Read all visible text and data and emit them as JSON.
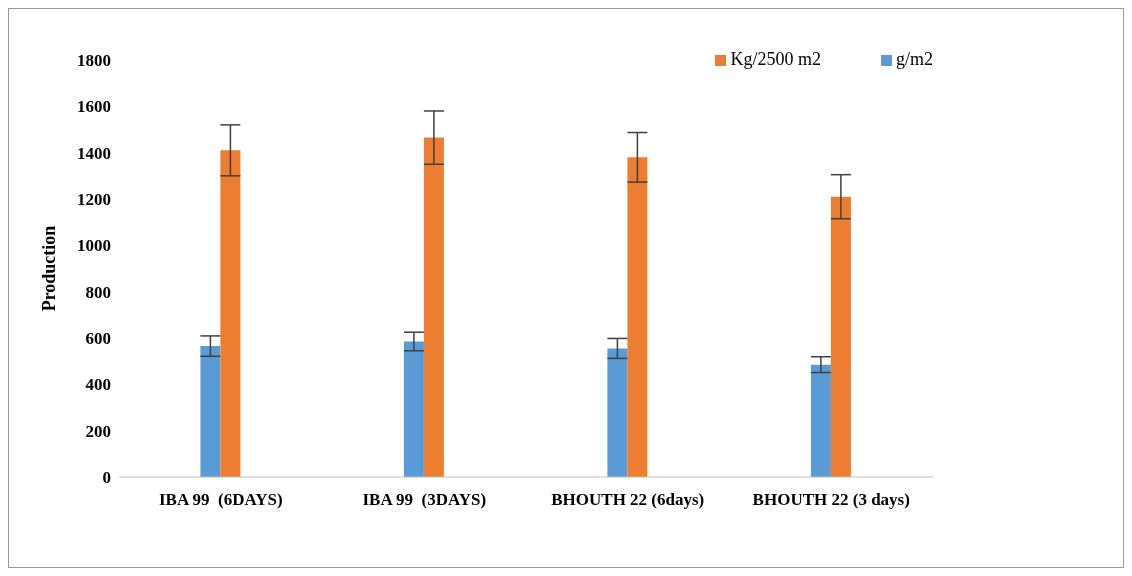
{
  "chart_data": {
    "type": "bar",
    "ylabel": "Production",
    "categories": [
      "IBA 99  (6DAYS)",
      "IBA 99  (3DAYS)",
      "BHOUTH 22 (6days)",
      "BHOUTH 22 (3 days)"
    ],
    "series": [
      {
        "name": "g/m2",
        "color": "#5b9bd5",
        "values": [
          565,
          585,
          555,
          485
        ],
        "errors": [
          44,
          40,
          43,
          34
        ]
      },
      {
        "name": "Kg/2500 m2",
        "color": "#ed7d31",
        "values": [
          1410,
          1465,
          1380,
          1210
        ],
        "errors": [
          110,
          115,
          107,
          95
        ]
      }
    ],
    "ylim": [
      0,
      1800
    ],
    "yticks": [
      0,
      200,
      400,
      600,
      800,
      1000,
      1200,
      1400,
      1600,
      1800
    ],
    "grid": false,
    "legend": "top right"
  }
}
